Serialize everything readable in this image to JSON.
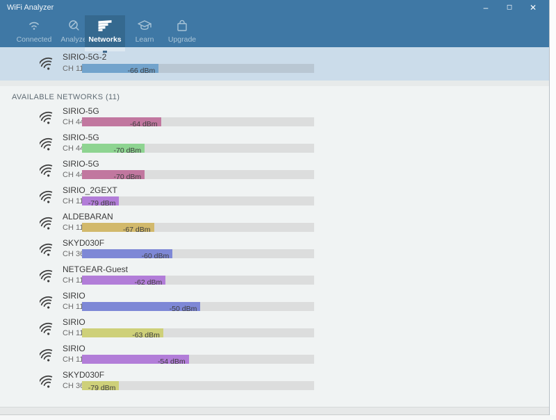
{
  "window": {
    "title": "WiFi Analyzer",
    "controls": {
      "minimize": "–",
      "maximize": "◻",
      "close": "✕"
    }
  },
  "tabs": [
    {
      "label": "Connected",
      "icon": "wifi-icon",
      "selected": false
    },
    {
      "label": "Analyze",
      "icon": "magnifier-icon",
      "selected": false
    },
    {
      "label": "Networks",
      "icon": "network-bars-icon",
      "selected": true
    },
    {
      "label": "Learn",
      "icon": "graduation-cap-icon",
      "selected": false
    },
    {
      "label": "Upgrade",
      "icon": "shopping-bag-icon",
      "selected": false
    }
  ],
  "connected_network": {
    "ssid": "SIRIO-5G-2",
    "channel": "CH 116",
    "signal_label": "-66 dBm",
    "signal_dbm": -66,
    "fill_pct": 33,
    "bar_color": "#72a3cc"
  },
  "available_header": "AVAILABLE NETWORKS (11)",
  "networks": [
    {
      "ssid": "SIRIO-5G",
      "channel": "CH 44",
      "signal_label": "-64 dBm",
      "signal_dbm": -64,
      "fill_pct": 34,
      "bar_color": "#c1779f"
    },
    {
      "ssid": "SIRIO-5G",
      "channel": "CH 44",
      "signal_label": "-70 dBm",
      "signal_dbm": -70,
      "fill_pct": 27,
      "bar_color": "#8ed491"
    },
    {
      "ssid": "SIRIO-5G",
      "channel": "CH 44",
      "signal_label": "-70 dBm",
      "signal_dbm": -70,
      "fill_pct": 27,
      "bar_color": "#c1779f"
    },
    {
      "ssid": "SIRIO_2GEXT",
      "channel": "CH 11",
      "signal_label": "-79 dBm",
      "signal_dbm": -79,
      "fill_pct": 16,
      "bar_color": "#b27dd8"
    },
    {
      "ssid": "ALDEBARAN",
      "channel": "CH 11",
      "signal_label": "-67 dBm",
      "signal_dbm": -67,
      "fill_pct": 31,
      "bar_color": "#d2b96c"
    },
    {
      "ssid": "SKYD030F",
      "channel": "CH 36",
      "signal_label": "-60 dBm",
      "signal_dbm": -60,
      "fill_pct": 39,
      "bar_color": "#7e88d6"
    },
    {
      "ssid": "NETGEAR-Guest",
      "channel": "CH 11",
      "signal_label": "-62 dBm",
      "signal_dbm": -62,
      "fill_pct": 36,
      "bar_color": "#b27dd8"
    },
    {
      "ssid": "SIRIO",
      "channel": "CH 11",
      "signal_label": "-50 dBm",
      "signal_dbm": -50,
      "fill_pct": 51,
      "bar_color": "#7e88d6"
    },
    {
      "ssid": "SIRIO",
      "channel": "CH 11",
      "signal_label": "-63 dBm",
      "signal_dbm": -63,
      "fill_pct": 35,
      "bar_color": "#ced079"
    },
    {
      "ssid": "SIRIO",
      "channel": "CH 11",
      "signal_label": "-54 dBm",
      "signal_dbm": -54,
      "fill_pct": 46,
      "bar_color": "#b27dd8"
    },
    {
      "ssid": "SKYD030F",
      "channel": "CH 36",
      "signal_label": "-79 dBm",
      "signal_dbm": -79,
      "fill_pct": 16,
      "bar_color": "#ced079"
    }
  ],
  "colors": {
    "titlebar": "#3f78a5",
    "selected_tab": "#35698f",
    "connected_section_bg": "#cbdcea",
    "main_bg": "#f0f3f3",
    "row_track": "#dcdddd",
    "connected_track": "#b9c7d3"
  }
}
